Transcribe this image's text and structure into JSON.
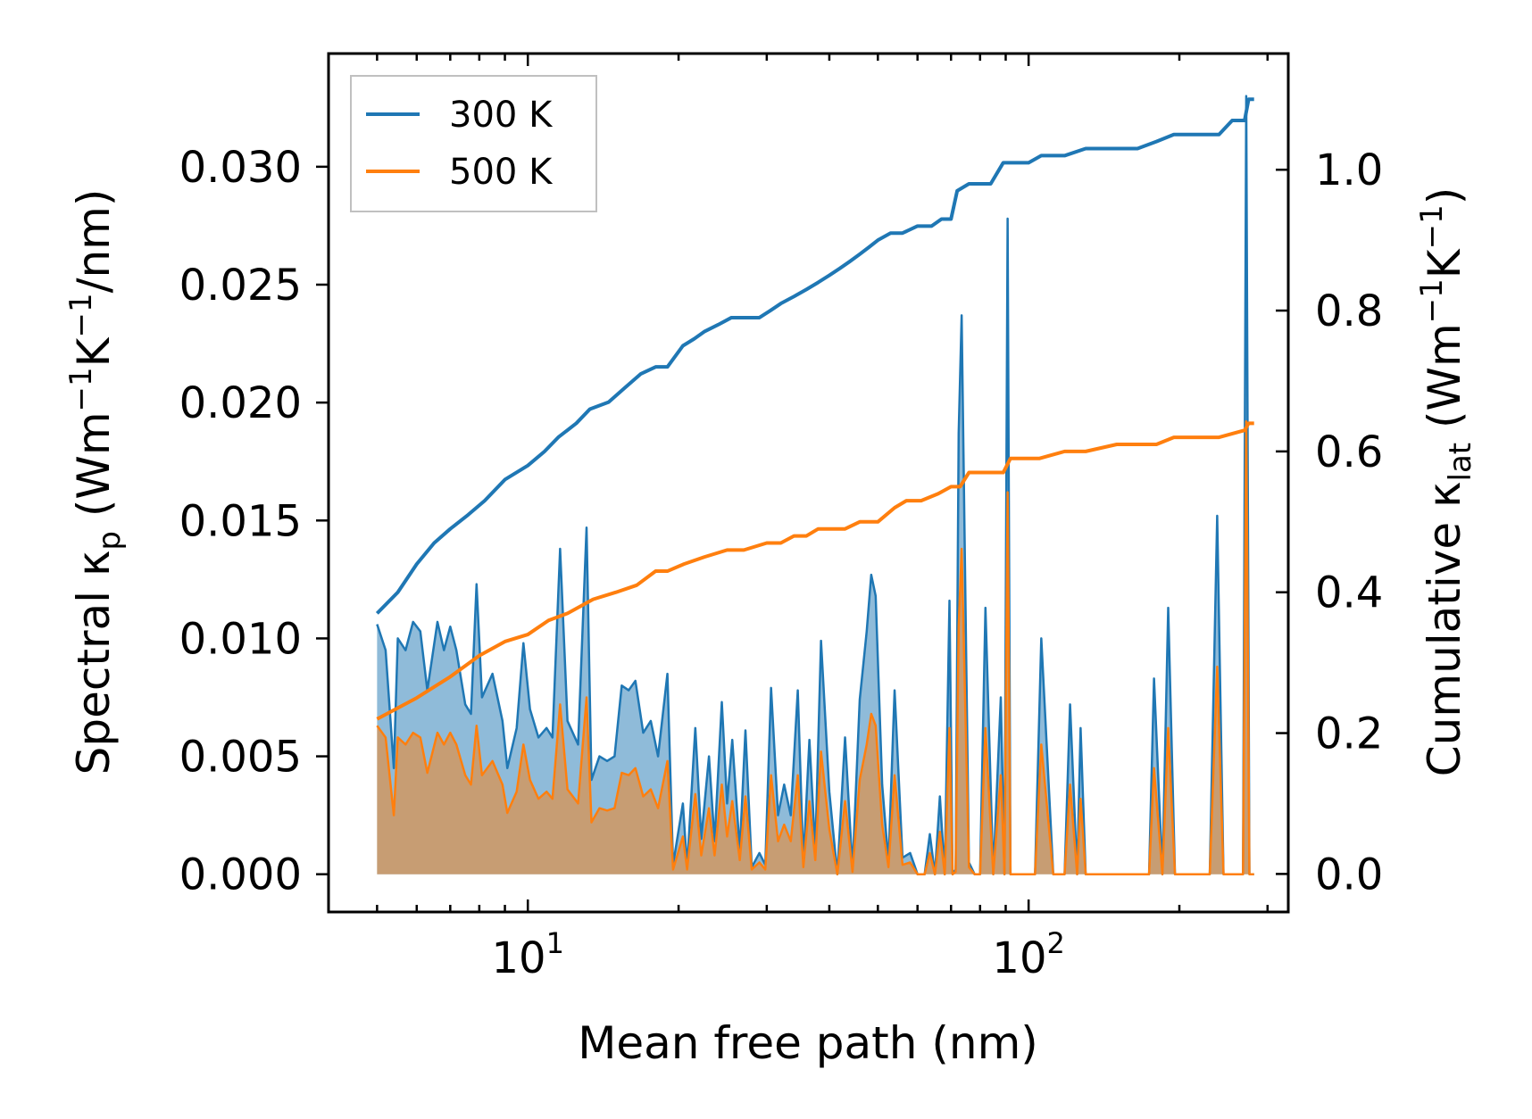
{
  "chart_data": {
    "type": "line",
    "xscale": "log",
    "xlabel": "Mean free path (nm)",
    "ylabel_left": {
      "prefix": "Spectral κ",
      "sub": "p",
      "units_pre": " (Wm",
      "sup1": "−1",
      "units_mid": "K",
      "sup2": "−1",
      "units_post": "/nm)"
    },
    "ylabel_right": {
      "prefix": "Cumulative κ",
      "sub": "lat",
      "units_pre": " (Wm",
      "sup1": "−1",
      "units_mid": "K",
      "sup2": "−1",
      "units_post": ")"
    },
    "xlim": [
      4.0,
      330
    ],
    "ylim_left": [
      -0.0016,
      0.0348
    ],
    "ylim_right": [
      -0.054,
      1.165
    ],
    "x_major_ticks": [
      {
        "value": 10,
        "base": "10",
        "exp": "1"
      },
      {
        "value": 100,
        "base": "10",
        "exp": "2"
      }
    ],
    "y_left_ticks": [
      {
        "value": 0.0,
        "label": "0.000"
      },
      {
        "value": 0.005,
        "label": "0.005"
      },
      {
        "value": 0.01,
        "label": "0.010"
      },
      {
        "value": 0.015,
        "label": "0.015"
      },
      {
        "value": 0.02,
        "label": "0.020"
      },
      {
        "value": 0.025,
        "label": "0.025"
      },
      {
        "value": 0.03,
        "label": "0.030"
      }
    ],
    "y_right_ticks": [
      {
        "value": 0.0,
        "label": "0.0"
      },
      {
        "value": 0.2,
        "label": "0.2"
      },
      {
        "value": 0.4,
        "label": "0.4"
      },
      {
        "value": 0.6,
        "label": "0.6"
      },
      {
        "value": 0.8,
        "label": "0.8"
      },
      {
        "value": 1.0,
        "label": "1.0"
      }
    ],
    "legend": {
      "position": "upper-left",
      "entries": [
        {
          "label": "300 K",
          "color": "#1f77b4"
        },
        {
          "label": "500 K",
          "color": "#ff7f0e"
        }
      ]
    },
    "cumulative_series": [
      {
        "name": "300 K",
        "color": "#1f77b4",
        "axis": "right",
        "x": [
          5.0,
          5.5,
          6.0,
          6.5,
          7.0,
          7.6,
          8.2,
          9.0,
          10.0,
          10.8,
          11.5,
          12.5,
          13.3,
          14.5,
          15.6,
          16.8,
          18.0,
          19.0,
          20.4,
          21.5,
          22.5,
          24.0,
          25.5,
          27.0,
          29.0,
          30.5,
          32.0,
          34.0,
          36.0,
          38.0,
          40.0,
          42.0,
          44.0,
          46.0,
          48.0,
          50.0,
          53.0,
          56.0,
          60.0,
          64.0,
          67.0,
          70.0,
          72.0,
          76.0,
          84.0,
          89.0,
          91.5,
          100.0,
          106.0,
          118.0,
          130.0,
          150.0,
          165.0,
          180.0,
          195.0,
          240.0,
          255.0,
          270.0,
          275.0,
          282.0
        ],
        "y": [
          0.37,
          0.4,
          0.44,
          0.47,
          0.49,
          0.51,
          0.53,
          0.56,
          0.58,
          0.6,
          0.62,
          0.64,
          0.66,
          0.67,
          0.69,
          0.71,
          0.72,
          0.72,
          0.75,
          0.76,
          0.77,
          0.78,
          0.79,
          0.79,
          0.79,
          0.8,
          0.81,
          0.82,
          0.83,
          0.84,
          0.85,
          0.86,
          0.87,
          0.88,
          0.89,
          0.9,
          0.91,
          0.91,
          0.92,
          0.92,
          0.93,
          0.93,
          0.97,
          0.98,
          0.98,
          1.01,
          1.01,
          1.01,
          1.02,
          1.02,
          1.03,
          1.03,
          1.03,
          1.04,
          1.05,
          1.05,
          1.07,
          1.07,
          1.1,
          1.1
        ]
      },
      {
        "name": "500 K",
        "color": "#ff7f0e",
        "axis": "right",
        "x": [
          5.0,
          6.0,
          7.0,
          8.0,
          9.0,
          10.0,
          11.0,
          12.0,
          13.5,
          15.0,
          16.5,
          18.0,
          19.0,
          20.5,
          22.5,
          25.0,
          27.0,
          30.0,
          32.0,
          34.0,
          36.0,
          38.0,
          40.0,
          43.0,
          46.0,
          50.0,
          54.0,
          57.0,
          61.0,
          66.0,
          70.0,
          73.0,
          76.0,
          80.0,
          89.0,
          92.0,
          105.0,
          118.0,
          130.0,
          150.0,
          180.0,
          195.0,
          240.0,
          270.0,
          275.0,
          282.0
        ],
        "y": [
          0.22,
          0.25,
          0.28,
          0.31,
          0.33,
          0.34,
          0.36,
          0.37,
          0.39,
          0.4,
          0.41,
          0.43,
          0.43,
          0.44,
          0.45,
          0.46,
          0.46,
          0.47,
          0.47,
          0.48,
          0.48,
          0.49,
          0.49,
          0.49,
          0.5,
          0.5,
          0.52,
          0.53,
          0.53,
          0.54,
          0.55,
          0.55,
          0.57,
          0.57,
          0.57,
          0.59,
          0.59,
          0.6,
          0.6,
          0.61,
          0.61,
          0.62,
          0.62,
          0.63,
          0.64,
          0.64
        ]
      }
    ],
    "spectral_series": [
      {
        "name": "300 K",
        "color": "#1f77b4",
        "axis": "left",
        "x": [
          5.0,
          5.2,
          5.4,
          5.5,
          5.7,
          5.9,
          6.1,
          6.3,
          6.6,
          6.8,
          7.0,
          7.2,
          7.5,
          7.7,
          7.9,
          8.1,
          8.5,
          8.9,
          9.1,
          9.5,
          9.8,
          10.1,
          10.5,
          10.9,
          11.2,
          11.6,
          12.0,
          12.6,
          13.1,
          13.4,
          13.9,
          14.4,
          14.9,
          15.4,
          15.9,
          16.4,
          17.0,
          17.6,
          18.2,
          19.0,
          19.5,
          20.4,
          20.8,
          21.6,
          22.2,
          23.0,
          23.6,
          24.4,
          25.0,
          25.6,
          26.5,
          27.2,
          28.0,
          29.0,
          29.8,
          30.6,
          31.6,
          32.5,
          33.5,
          34.6,
          35.5,
          36.5,
          37.5,
          38.5,
          40.0,
          41.5,
          43.0,
          44.5,
          46.0,
          47.5,
          48.5,
          49.5,
          51.0,
          52.5,
          54.0,
          56.0,
          58.0,
          60.0,
          62.0,
          63.5,
          65.0,
          66.5,
          68.0,
          69.5,
          70.5,
          71.5,
          72.5,
          73.5,
          76.0,
          78.0,
          80.0,
          82.0,
          85.0,
          88.0,
          89.5,
          90.8,
          92.0,
          93.5,
          98.0,
          101.0,
          103.0,
          106.0,
          112.0,
          118.0,
          121.0,
          125.0,
          127.0,
          130.0,
          135.0,
          170.0,
          174.0,
          178.0,
          185.0,
          190.0,
          196.0,
          230.0,
          238.0,
          245.0,
          268.0,
          272.0,
          276.0,
          282.0
        ],
        "y": [
          0.0106,
          0.0095,
          0.0045,
          0.01,
          0.0095,
          0.0107,
          0.0103,
          0.0078,
          0.0107,
          0.0095,
          0.0105,
          0.0095,
          0.0072,
          0.0068,
          0.0123,
          0.0075,
          0.0085,
          0.0065,
          0.0045,
          0.0062,
          0.0098,
          0.007,
          0.0058,
          0.0062,
          0.0058,
          0.0138,
          0.0065,
          0.0055,
          0.0147,
          0.004,
          0.005,
          0.0048,
          0.005,
          0.008,
          0.0078,
          0.0082,
          0.006,
          0.0065,
          0.005,
          0.0085,
          0.0004,
          0.003,
          0.0003,
          0.0062,
          0.0015,
          0.005,
          0.0014,
          0.0073,
          0.003,
          0.0057,
          0.001,
          0.0061,
          0.0003,
          0.0009,
          0.0004,
          0.0079,
          0.0025,
          0.0038,
          0.0025,
          0.0078,
          0.0005,
          0.0057,
          0.001,
          0.0099,
          0.0035,
          0.0,
          0.0058,
          0.0002,
          0.0074,
          0.0103,
          0.0127,
          0.0118,
          0.0038,
          0.0005,
          0.0078,
          0.0007,
          0.0009,
          0.0,
          0.0,
          0.0017,
          0.0,
          0.0033,
          0.0,
          0.0116,
          0.0,
          0.0002,
          0.0187,
          0.0237,
          0.0005,
          0.0,
          0.0,
          0.0113,
          0.0,
          0.0075,
          0.0,
          0.0278,
          0.0,
          0.0,
          0.0,
          0.0,
          0.0,
          0.01,
          0.0,
          0.0,
          0.0072,
          0.0,
          0.0062,
          0.0,
          0.0,
          0.0,
          0.0,
          0.0083,
          0.0,
          0.0113,
          0.0,
          0.0,
          0.0152,
          0.0,
          0.0,
          0.033,
          0.0,
          0.0
        ]
      },
      {
        "name": "500 K",
        "color": "#ff7f0e",
        "axis": "left",
        "x": [
          5.0,
          5.2,
          5.4,
          5.5,
          5.7,
          5.9,
          6.1,
          6.3,
          6.6,
          6.8,
          7.0,
          7.2,
          7.5,
          7.7,
          7.9,
          8.1,
          8.5,
          8.9,
          9.1,
          9.5,
          9.8,
          10.1,
          10.5,
          10.9,
          11.2,
          11.6,
          12.0,
          12.6,
          13.1,
          13.4,
          13.9,
          14.4,
          14.9,
          15.4,
          15.9,
          16.4,
          17.0,
          17.6,
          18.2,
          19.0,
          19.5,
          20.4,
          20.8,
          21.6,
          22.2,
          23.0,
          23.6,
          24.4,
          25.0,
          25.6,
          26.5,
          27.2,
          28.0,
          29.0,
          29.8,
          30.6,
          31.6,
          32.5,
          33.5,
          34.6,
          35.5,
          36.5,
          37.5,
          38.5,
          40.0,
          41.5,
          43.0,
          44.5,
          46.0,
          47.5,
          48.5,
          49.5,
          51.0,
          52.5,
          54.0,
          56.0,
          58.0,
          60.0,
          62.0,
          63.5,
          65.0,
          66.5,
          68.0,
          69.5,
          70.5,
          71.5,
          72.5,
          73.5,
          76.0,
          78.0,
          80.0,
          82.0,
          85.0,
          88.0,
          89.5,
          90.8,
          92.0,
          93.5,
          98.0,
          101.0,
          103.0,
          106.0,
          112.0,
          118.0,
          121.0,
          125.0,
          127.0,
          130.0,
          135.0,
          170.0,
          174.0,
          178.0,
          185.0,
          190.0,
          196.0,
          230.0,
          238.0,
          245.0,
          268.0,
          272.0,
          276.0,
          282.0
        ],
        "y": [
          0.0063,
          0.0058,
          0.0025,
          0.0058,
          0.0055,
          0.006,
          0.0058,
          0.0043,
          0.006,
          0.0055,
          0.006,
          0.0055,
          0.0042,
          0.0038,
          0.0063,
          0.0042,
          0.0048,
          0.0038,
          0.0026,
          0.0035,
          0.0055,
          0.004,
          0.0032,
          0.0035,
          0.0032,
          0.0072,
          0.0036,
          0.003,
          0.0075,
          0.0022,
          0.0028,
          0.0027,
          0.0028,
          0.0043,
          0.0042,
          0.0045,
          0.0033,
          0.0036,
          0.0028,
          0.0048,
          0.0002,
          0.0016,
          0.0002,
          0.0034,
          0.0008,
          0.0028,
          0.0008,
          0.0038,
          0.0016,
          0.0031,
          0.0006,
          0.0033,
          0.0002,
          0.0005,
          0.0002,
          0.0042,
          0.0014,
          0.0021,
          0.0014,
          0.0042,
          0.0003,
          0.0031,
          0.0006,
          0.0052,
          0.0019,
          0.0,
          0.0031,
          0.0001,
          0.004,
          0.0055,
          0.0068,
          0.0063,
          0.0021,
          0.0003,
          0.0042,
          0.0004,
          0.0005,
          0.0,
          0.0,
          0.0009,
          0.0,
          0.0018,
          0.0,
          0.0062,
          0.0,
          0.0001,
          0.0105,
          0.0138,
          0.0003,
          0.0,
          0.0,
          0.0062,
          0.0,
          0.0042,
          0.0,
          0.0162,
          0.0,
          0.0,
          0.0,
          0.0,
          0.0,
          0.0055,
          0.0,
          0.0,
          0.0038,
          0.0,
          0.0032,
          0.0,
          0.0,
          0.0,
          0.0,
          0.0045,
          0.0,
          0.0062,
          0.0,
          0.0,
          0.0088,
          0.0,
          0.0,
          0.0192,
          0.0,
          0.0
        ]
      }
    ]
  }
}
